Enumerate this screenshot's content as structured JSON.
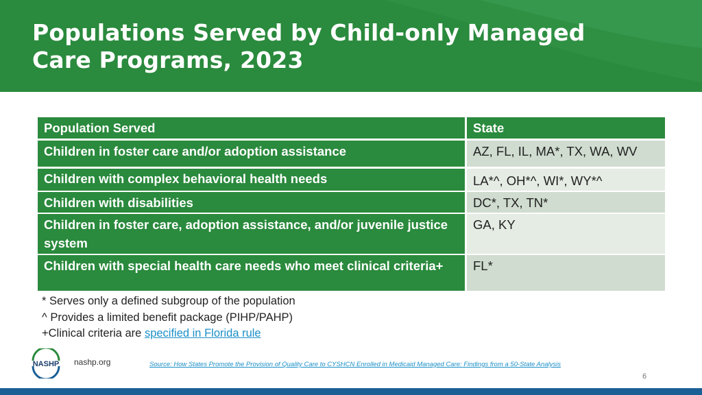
{
  "slide": {
    "title": "Populations Served by Child-only Managed Care Programs, 2023",
    "page_number": "6"
  },
  "table": {
    "headers": {
      "population": "Population Served",
      "state": "State"
    },
    "rows": [
      {
        "population": "Children in foster care and/or adoption assistance",
        "state": "AZ, FL, IL, MA*, TX, WA, WV"
      },
      {
        "population": "Children with complex behavioral health needs",
        "state": "LA*^, OH*^, WI*, WY*^"
      },
      {
        "population": "Children with disabilities",
        "state": "DC*, TX, TN*"
      },
      {
        "population": "Children in foster care, adoption assistance, and/or juvenile justice system",
        "state": "GA, KY"
      },
      {
        "population": "Children with special health care needs who meet clinical criteria+",
        "state": "FL*"
      }
    ]
  },
  "notes": {
    "note1": "* Serves only a defined subgroup of the population",
    "note2": "^ Provides a limited benefit package (PIHP/PAHP)",
    "note3_prefix": "+Clinical criteria are ",
    "note3_link": "specified in Florida rule"
  },
  "footer": {
    "logo_text": "NASHP",
    "site": "nashp.org",
    "source": "Source: How States Promote the Provision of Quality Care to CYSHCN Enrolled in Medicaid Managed Care: Findings from a 50-State Analysis"
  },
  "colors": {
    "brand_green": "#2a8a3d",
    "row_alt_dark": "#cfdccf",
    "row_alt_light": "#e5ece4",
    "link_blue": "#1b8fc7",
    "footer_blue": "#1a5f96"
  }
}
